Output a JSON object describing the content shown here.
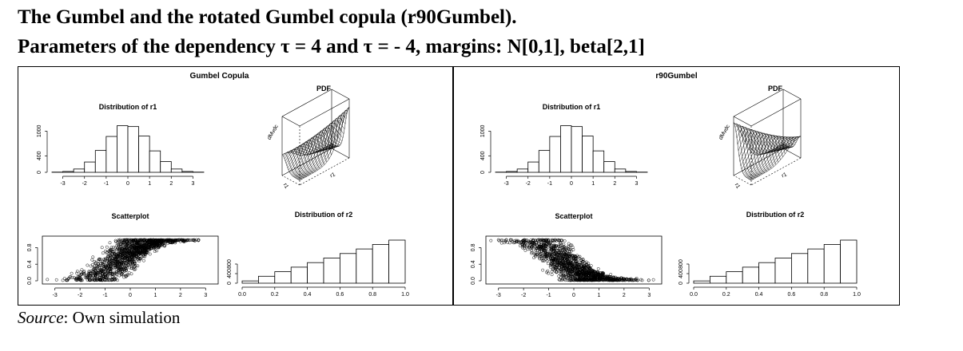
{
  "header": {
    "line1": "The Gumbel and the rotated Gumbel copula  (r90Gumbel).",
    "line2": "Parameters of the dependency  τ = 4 and τ = - 4, margins: N[0,1], beta[2,1]"
  },
  "footer": {
    "source_label": "Source",
    "source_text": ": Own simulation"
  },
  "chart_data": [
    {
      "panel_title": "Gumbel Copula",
      "pdf_title": "PDF",
      "pdf_axis_labels": [
        "dMvdc",
        "r1",
        "r1"
      ],
      "hist_r1": {
        "type": "bar",
        "title": "Distribution of r1",
        "bins": [
          -3.5,
          -3,
          -2.5,
          -2,
          -1.5,
          -1,
          -0.5,
          0,
          0.5,
          1,
          1.5,
          2,
          2.5,
          3,
          3.5
        ],
        "counts": [
          5,
          20,
          80,
          250,
          530,
          870,
          1130,
          1110,
          880,
          520,
          260,
          80,
          20,
          5
        ],
        "xticks": [
          -3,
          -2,
          -1,
          0,
          1,
          2,
          3
        ],
        "yticks": [
          0,
          400,
          1000
        ],
        "ylim": [
          0,
          1200
        ]
      },
      "scatter": {
        "type": "scatter",
        "title": "Scatterplot",
        "direction": "increasing",
        "xticks": [
          -3,
          -2,
          -1,
          0,
          1,
          2,
          3
        ],
        "yticks": [
          "0.0",
          "0.4",
          "0.8"
        ],
        "xlim": [
          -3.5,
          3.5
        ],
        "ylim": [
          0,
          1
        ]
      },
      "hist_r2": {
        "type": "bar",
        "title": "Distribution of r2",
        "bins": [
          0,
          0.1,
          0.2,
          0.3,
          0.4,
          0.5,
          0.6,
          0.7,
          0.8,
          0.9,
          1.0
        ],
        "counts": [
          95,
          290,
          480,
          670,
          860,
          1050,
          1240,
          1430,
          1620,
          1800
        ],
        "xticks": [
          "0.0",
          "0.2",
          "0.4",
          "0.6",
          "0.8",
          "1.0"
        ],
        "yticks": [
          0,
          400,
          800
        ],
        "ylim": [
          0,
          1900
        ]
      }
    },
    {
      "panel_title": "r90Gumbel",
      "pdf_title": "PDF",
      "pdf_axis_labels": [
        "dMvdc",
        "r1",
        "r1"
      ],
      "hist_r1": {
        "type": "bar",
        "title": "Distribution of r1",
        "bins": [
          -3.5,
          -3,
          -2.5,
          -2,
          -1.5,
          -1,
          -0.5,
          0,
          0.5,
          1,
          1.5,
          2,
          2.5,
          3,
          3.5
        ],
        "counts": [
          5,
          20,
          80,
          250,
          530,
          870,
          1130,
          1110,
          880,
          520,
          260,
          80,
          20,
          5
        ],
        "xticks": [
          -3,
          -2,
          -1,
          0,
          1,
          2,
          3
        ],
        "yticks": [
          0,
          400,
          1000
        ],
        "ylim": [
          0,
          1200
        ]
      },
      "scatter": {
        "type": "scatter",
        "title": "Scatterplot",
        "direction": "decreasing",
        "xticks": [
          -3,
          -2,
          -1,
          0,
          1,
          2,
          3
        ],
        "yticks": [
          "0.0",
          "0.4",
          "0.8"
        ],
        "xlim": [
          -3.5,
          3.5
        ],
        "ylim": [
          0,
          1
        ]
      },
      "hist_r2": {
        "type": "bar",
        "title": "Distribution of r2",
        "bins": [
          0,
          0.1,
          0.2,
          0.3,
          0.4,
          0.5,
          0.6,
          0.7,
          0.8,
          0.9,
          1.0
        ],
        "counts": [
          95,
          290,
          480,
          670,
          860,
          1050,
          1240,
          1430,
          1620,
          1800
        ],
        "xticks": [
          "0.0",
          "0.2",
          "0.4",
          "0.6",
          "0.8",
          "1.0"
        ],
        "yticks": [
          0,
          400,
          800
        ],
        "ylim": [
          0,
          1900
        ]
      }
    }
  ]
}
